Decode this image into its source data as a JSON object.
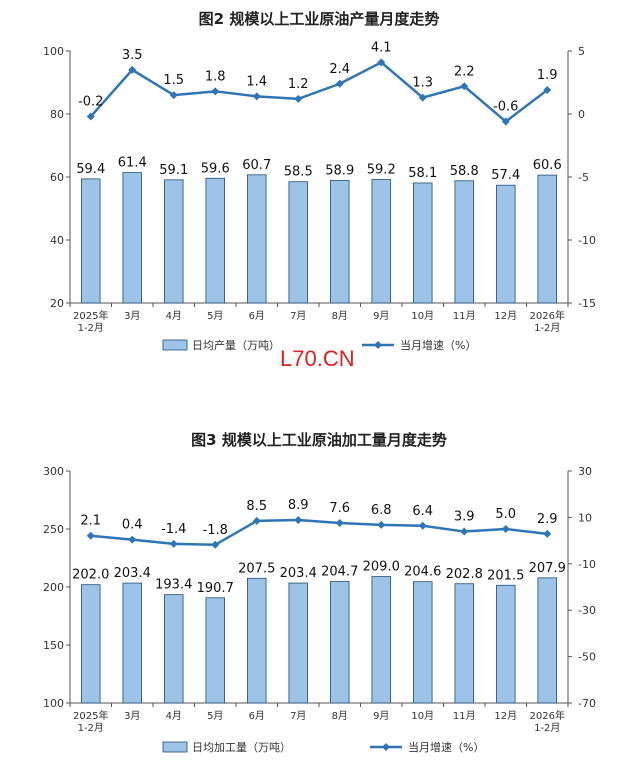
{
  "watermark": "L70.CN",
  "chart_data": [
    {
      "type": "bar",
      "title": "图2  规模以上工业原油产量月度走势",
      "categories": [
        "2025年\n1-2月",
        "3月",
        "4月",
        "5月",
        "6月",
        "7月",
        "8月",
        "9月",
        "10月",
        "11月",
        "12月",
        "2026年\n1-2月"
      ],
      "series": [
        {
          "name": "日均产量（万吨）",
          "type": "bar",
          "axis": "left",
          "color": "#9dc3e6",
          "values": [
            59.4,
            61.4,
            59.1,
            59.6,
            60.7,
            58.5,
            58.9,
            59.2,
            58.1,
            58.8,
            57.4,
            60.6
          ],
          "labels": [
            "59.4",
            "61.4",
            "59.1",
            "59.6",
            "60.7",
            "58.5",
            "58.9",
            "59.2",
            "58.1",
            "58.8",
            "57.4",
            "60.6"
          ]
        },
        {
          "name": "当月增速（%）",
          "type": "line",
          "axis": "right",
          "color": "#2e75b6",
          "values": [
            -0.2,
            3.5,
            1.5,
            1.8,
            1.4,
            1.2,
            2.4,
            4.1,
            1.3,
            2.2,
            -0.6,
            1.9
          ],
          "labels": [
            "-0.2",
            "3.5",
            "1.5",
            "1.8",
            "1.4",
            "1.2",
            "2.4",
            "4.1",
            "1.3",
            "2.2",
            "-0.6",
            "1.9"
          ]
        }
      ],
      "ylim_left": [
        20,
        100
      ],
      "yticks_left": [
        20,
        40,
        60,
        80,
        100
      ],
      "ylim_right": [
        -15,
        5
      ],
      "yticks_right": [
        -15,
        -10,
        -5,
        0,
        5
      ],
      "grid": false,
      "legend": "bottom"
    },
    {
      "type": "bar",
      "title": "图3  规模以上工业原油加工量月度走势",
      "categories": [
        "2025年\n1-2月",
        "3月",
        "4月",
        "5月",
        "6月",
        "7月",
        "8月",
        "9月",
        "10月",
        "11月",
        "12月",
        "2026年\n1-2月"
      ],
      "series": [
        {
          "name": "日均加工量（万吨）",
          "type": "bar",
          "axis": "left",
          "color": "#9dc3e6",
          "values": [
            202.0,
            203.4,
            193.4,
            190.7,
            207.5,
            203.4,
            204.7,
            209.0,
            204.6,
            202.8,
            201.5,
            207.9
          ],
          "labels": [
            "202.0",
            "203.4",
            "193.4",
            "190.7",
            "207.5",
            "203.4",
            "204.7",
            "209.0",
            "204.6",
            "202.8",
            "201.5",
            "207.9"
          ]
        },
        {
          "name": "当月增速（%）",
          "type": "line",
          "axis": "right",
          "color": "#2e75b6",
          "values": [
            2.1,
            0.4,
            -1.4,
            -1.8,
            8.5,
            8.9,
            7.6,
            6.8,
            6.4,
            3.9,
            5.0,
            2.9
          ],
          "labels": [
            "2.1",
            "0.4",
            "-1.4",
            "-1.8",
            "8.5",
            "8.9",
            "7.6",
            "6.8",
            "6.4",
            "3.9",
            "5.0",
            "2.9"
          ]
        }
      ],
      "ylim_left": [
        100,
        300
      ],
      "yticks_left": [
        100,
        150,
        200,
        250,
        300
      ],
      "ylim_right": [
        -70,
        30
      ],
      "yticks_right": [
        -70,
        -50,
        -30,
        -10,
        10,
        30
      ],
      "grid": false,
      "legend": "bottom"
    }
  ]
}
